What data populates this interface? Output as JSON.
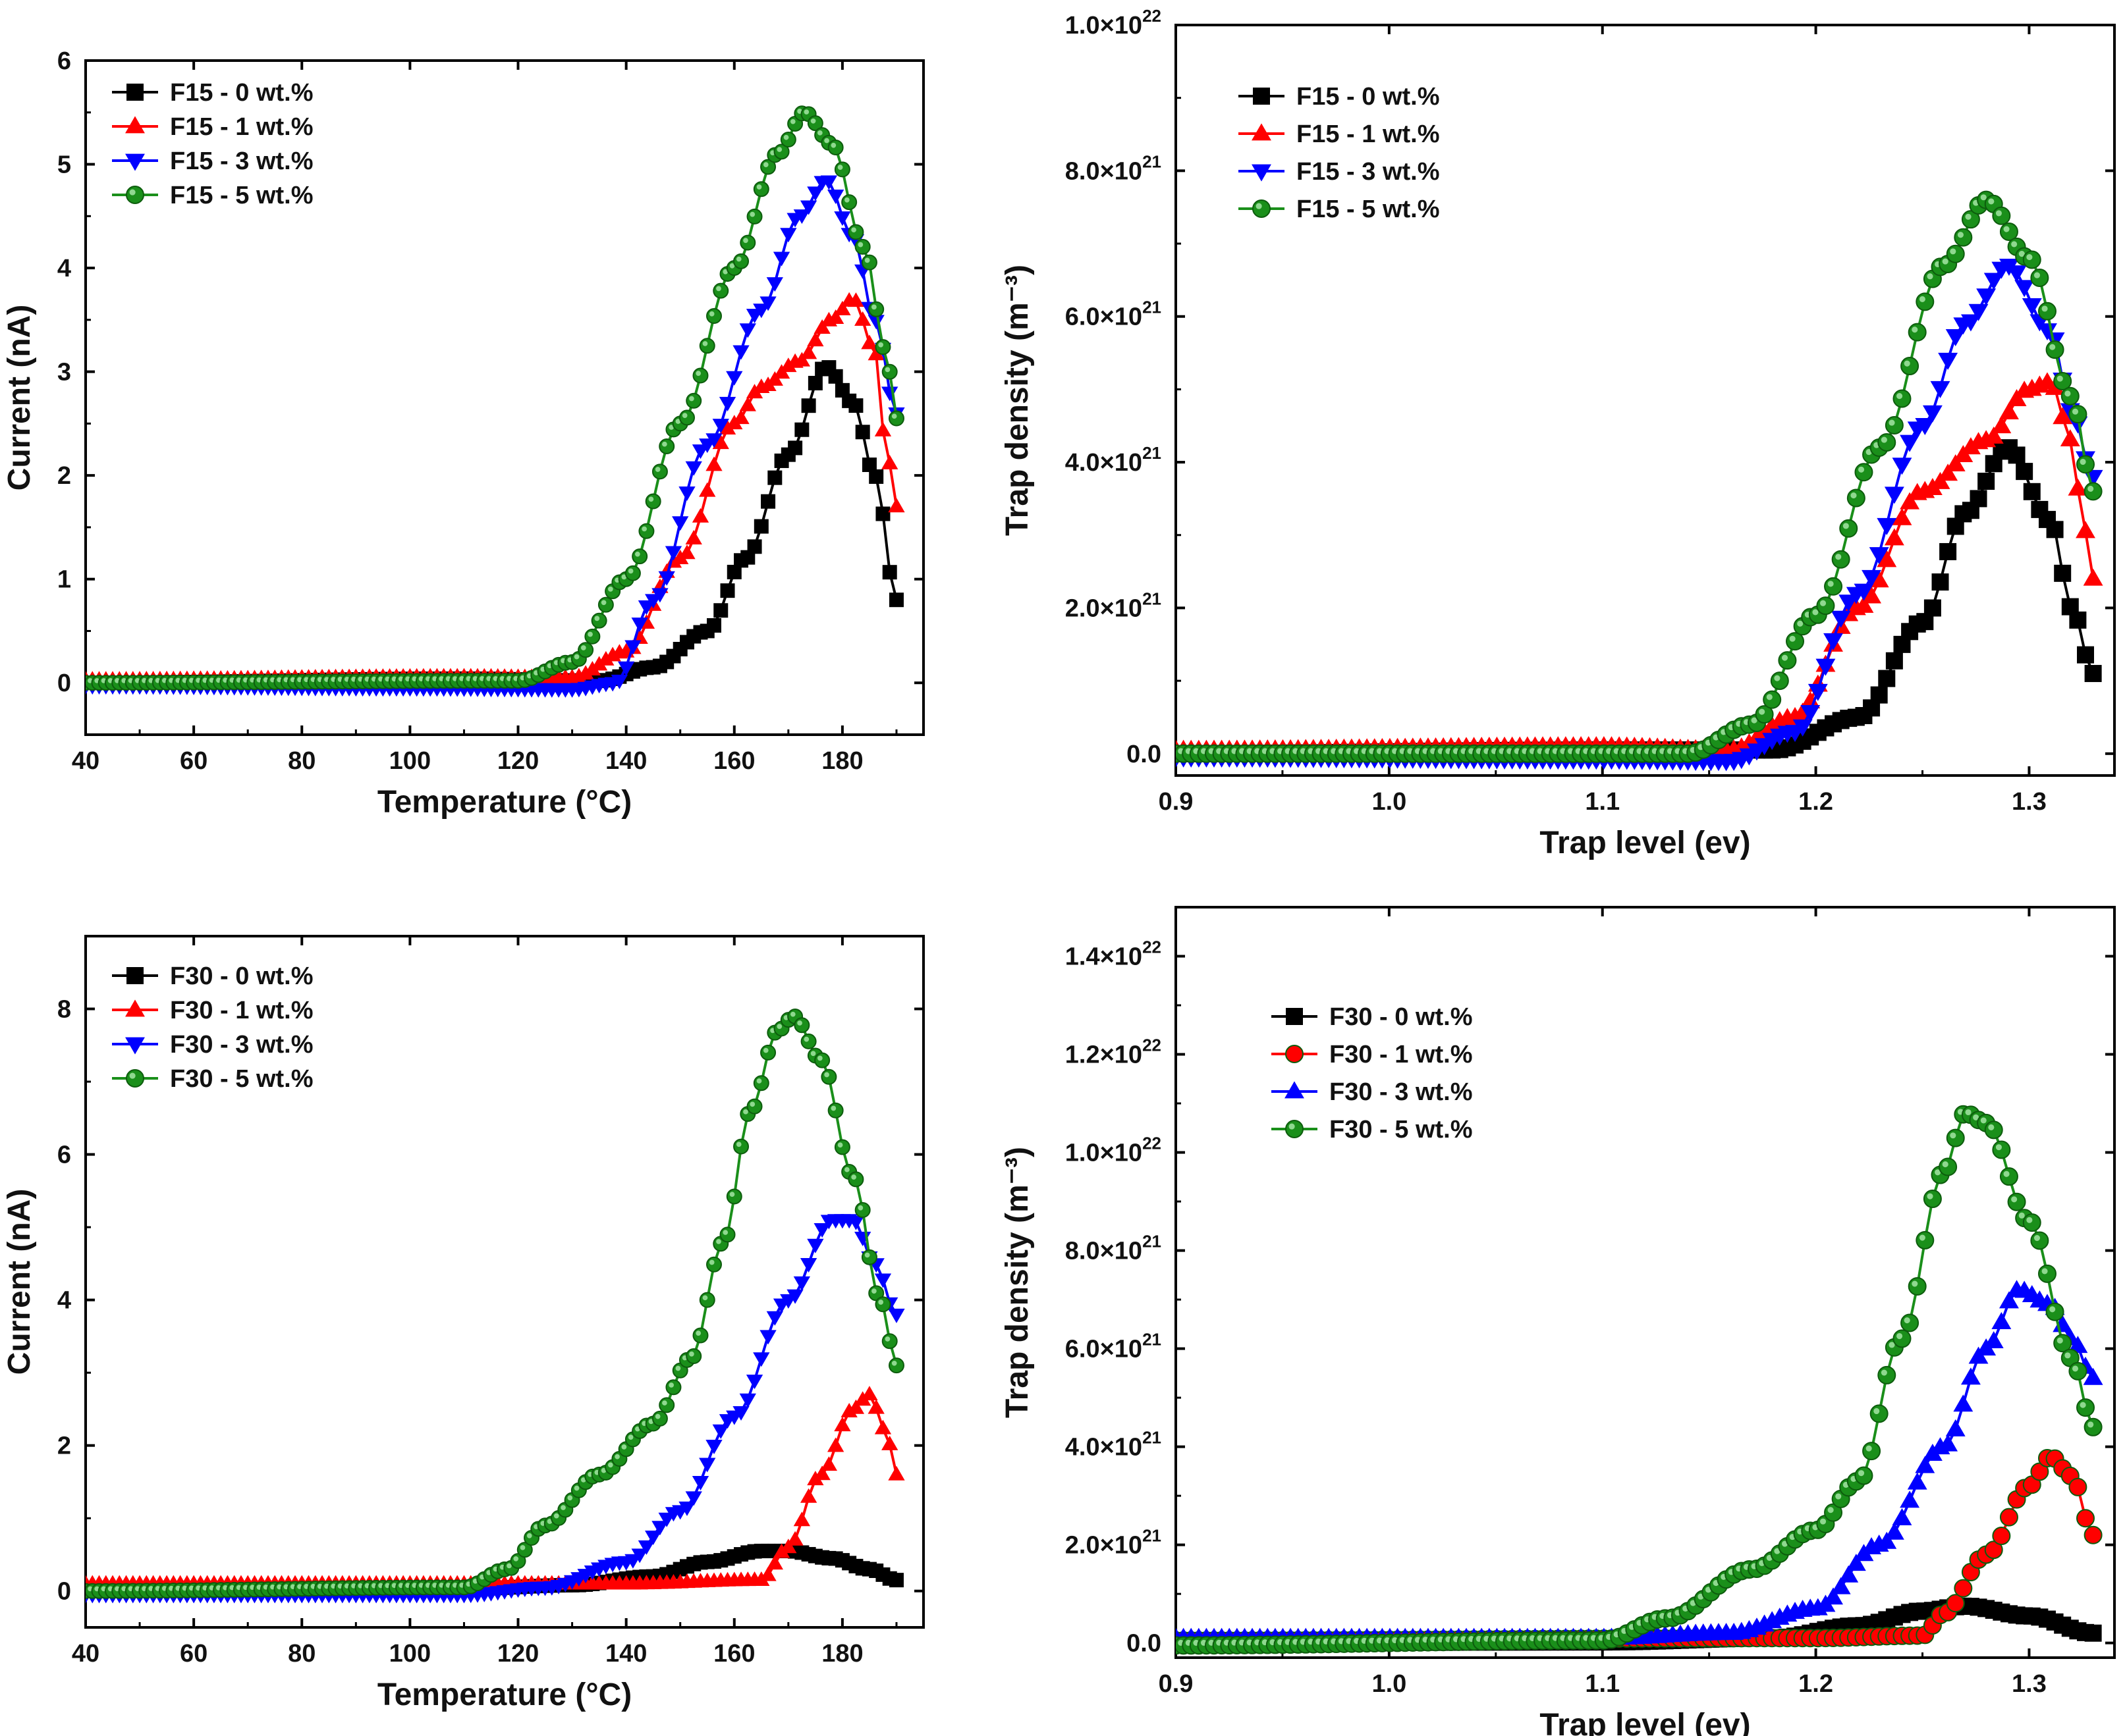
{
  "chart_data": [
    {
      "type": "line",
      "panel": "top-left",
      "xlabel": "Temperature (°C)",
      "ylabel": "Current (nA)",
      "xlim": [
        40,
        195
      ],
      "ylim": [
        -0.5,
        6
      ],
      "xticks": [
        40,
        60,
        80,
        100,
        120,
        140,
        160,
        180
      ],
      "yticks": [
        0,
        1,
        2,
        3,
        4,
        5,
        6
      ],
      "xtick_labels": [
        "40",
        "60",
        "80",
        "100",
        "120",
        "140",
        "160",
        "180"
      ],
      "ytick_labels": [
        "0",
        "1",
        "2",
        "3",
        "4",
        "5",
        "6"
      ],
      "legend_position": "top-left",
      "series": [
        {
          "name": "F15 - 0 wt.%",
          "color": "#000000",
          "marker": "square",
          "curve": {
            "base": 0.0,
            "bumpAmp": 0.04,
            "bumpCenter": 110,
            "shoulders": [
              [
                1.2,
                160,
                9
              ],
              [
                2.25,
                175,
                7
              ]
            ],
            "xEnd": 190,
            "peaks": [
              [
                177,
                3.05
              ]
            ],
            "tail": [
              [
                186,
                2.2
              ],
              [
                190,
                0.8
              ]
            ]
          }
        },
        {
          "name": "F15 - 1 wt.%",
          "color": "#ff0000",
          "marker": "triangle-up",
          "curve": {
            "base": 0.03,
            "points": [
              [
                40,
                0.03
              ],
              [
                110,
                0.06
              ],
              [
                130,
                0.05
              ],
              [
                140,
                0.3
              ],
              [
                150,
                1.2
              ],
              [
                160,
                2.5
              ],
              [
                165,
                2.85
              ],
              [
                172,
                3.1
              ],
              [
                178,
                3.5
              ],
              [
                182,
                3.7
              ],
              [
                186,
                3.2
              ],
              [
                188,
                2.3
              ],
              [
                190,
                1.7
              ]
            ]
          }
        },
        {
          "name": "F15 - 3 wt.%",
          "color": "#0000ff",
          "marker": "triangle-down",
          "curve": {
            "base": -0.03,
            "points": [
              [
                40,
                -0.03
              ],
              [
                100,
                -0.05
              ],
              [
                130,
                -0.06
              ],
              [
                138,
                0.0
              ],
              [
                145,
                0.8
              ],
              [
                155,
                2.3
              ],
              [
                165,
                3.6
              ],
              [
                172,
                4.5
              ],
              [
                177,
                4.85
              ],
              [
                182,
                4.3
              ],
              [
                186,
                3.5
              ],
              [
                190,
                2.6
              ]
            ]
          }
        },
        {
          "name": "F15 - 5 wt.%",
          "color": "#1a8f1a",
          "marker": "circle",
          "curve": {
            "base": 0.0,
            "points": [
              [
                40,
                0.0
              ],
              [
                120,
                0.02
              ],
              [
                130,
                0.2
              ],
              [
                140,
                1.0
              ],
              [
                150,
                2.5
              ],
              [
                160,
                4.0
              ],
              [
                168,
                5.1
              ],
              [
                173,
                5.5
              ],
              [
                178,
                5.2
              ],
              [
                184,
                4.2
              ],
              [
                188,
                3.2
              ],
              [
                190,
                2.55
              ]
            ]
          }
        }
      ]
    },
    {
      "type": "line",
      "panel": "top-right",
      "xlabel": "Trap level (ev)",
      "ylabel": "Trap density (m⁻³)",
      "xlim": [
        0.9,
        1.34
      ],
      "ylim": [
        -3e+20,
        1e+22
      ],
      "xticks": [
        0.9,
        1.0,
        1.1,
        1.2,
        1.3
      ],
      "yticks": [
        0,
        2e+21,
        4e+21,
        6e+21,
        8e+21,
        1e+22
      ],
      "xtick_labels": [
        "0.9",
        "1.0",
        "1.1",
        "1.2",
        "1.3"
      ],
      "ytick_labels": [
        "0.0",
        "2.0×10",
        "4.0×10",
        "6.0×10",
        "8.0×10",
        "1.0×10"
      ],
      "ytick_exponents": [
        "",
        "21",
        "21",
        "21",
        "21",
        "22"
      ],
      "legend_position": "top-left",
      "series": [
        {
          "name": "F15 - 0 wt.%",
          "color": "#000000",
          "marker": "square",
          "curve": {
            "points": [
              [
                0.9,
                0.0
              ],
              [
                1.1,
                5e+19
              ],
              [
                1.18,
                5e+19
              ],
              [
                1.22,
                5e+20
              ],
              [
                1.25,
                1.8e+21
              ],
              [
                1.27,
                3.3e+21
              ],
              [
                1.29,
                4.2e+21
              ],
              [
                1.31,
                3.2e+21
              ],
              [
                1.32,
                2e+21
              ],
              [
                1.33,
                1.1e+21
              ]
            ]
          }
        },
        {
          "name": "F15 - 1 wt.%",
          "color": "#ff0000",
          "marker": "triangle-up",
          "curve": {
            "points": [
              [
                0.9,
                5e+19
              ],
              [
                1.1,
                1e+20
              ],
              [
                1.16,
                5e+19
              ],
              [
                1.19,
                5e+20
              ],
              [
                1.22,
                2e+21
              ],
              [
                1.25,
                3.6e+21
              ],
              [
                1.28,
                4.3e+21
              ],
              [
                1.3,
                5e+21
              ],
              [
                1.31,
                5.1e+21
              ],
              [
                1.32,
                4.3e+21
              ],
              [
                1.325,
                3.2e+21
              ],
              [
                1.33,
                2.4e+21
              ]
            ]
          }
        },
        {
          "name": "F15 - 3 wt.%",
          "color": "#0000ff",
          "marker": "triangle-down",
          "curve": {
            "points": [
              [
                0.9,
                -5e+19
              ],
              [
                1.1,
                -8e+19
              ],
              [
                1.16,
                -1e+20
              ],
              [
                1.19,
                3e+20
              ],
              [
                1.22,
                2.2e+21
              ],
              [
                1.25,
                4.5e+21
              ],
              [
                1.27,
                5.9e+21
              ],
              [
                1.29,
                6.7e+21
              ],
              [
                1.31,
                5.8e+21
              ],
              [
                1.32,
                4.7e+21
              ],
              [
                1.33,
                3.8e+21
              ]
            ]
          }
        },
        {
          "name": "F15 - 5 wt.%",
          "color": "#1a8f1a",
          "marker": "circle",
          "curve": {
            "points": [
              [
                0.9,
                0.0
              ],
              [
                1.14,
                0.0
              ],
              [
                1.17,
                4e+20
              ],
              [
                1.2,
                1.9e+21
              ],
              [
                1.23,
                4.2e+21
              ],
              [
                1.26,
                6.7e+21
              ],
              [
                1.28,
                7.6e+21
              ],
              [
                1.3,
                6.8e+21
              ],
              [
                1.32,
                4.9e+21
              ],
              [
                1.33,
                3.6e+21
              ]
            ]
          }
        }
      ]
    },
    {
      "type": "line",
      "panel": "bottom-left",
      "xlabel": "Temperature (°C)",
      "ylabel": "Current (nA)",
      "xlim": [
        40,
        195
      ],
      "ylim": [
        -0.5,
        9
      ],
      "xticks": [
        40,
        60,
        80,
        100,
        120,
        140,
        160,
        180
      ],
      "yticks": [
        0,
        2,
        4,
        6,
        8
      ],
      "xtick_labels": [
        "40",
        "60",
        "80",
        "100",
        "120",
        "140",
        "160",
        "180"
      ],
      "ytick_labels": [
        "0",
        "2",
        "4",
        "6",
        "8"
      ],
      "legend_position": "top-left",
      "series": [
        {
          "name": "F30 - 0 wt.%",
          "color": "#000000",
          "marker": "square",
          "curve": {
            "points": [
              [
                40,
                0.0
              ],
              [
                110,
                0.03
              ],
              [
                130,
                0.08
              ],
              [
                145,
                0.2
              ],
              [
                155,
                0.4
              ],
              [
                165,
                0.55
              ],
              [
                170,
                0.55
              ],
              [
                178,
                0.45
              ],
              [
                185,
                0.3
              ],
              [
                190,
                0.15
              ]
            ]
          }
        },
        {
          "name": "F30 - 1 wt.%",
          "color": "#ff0000",
          "marker": "triangle-up",
          "curve": {
            "points": [
              [
                40,
                0.1
              ],
              [
                140,
                0.1
              ],
              [
                165,
                0.15
              ],
              [
                170,
                0.6
              ],
              [
                176,
                1.6
              ],
              [
                182,
                2.5
              ],
              [
                185,
                2.7
              ],
              [
                188,
                2.2
              ],
              [
                190,
                1.6
              ]
            ]
          }
        },
        {
          "name": "F30 - 3 wt.%",
          "color": "#0000ff",
          "marker": "triangle-down",
          "curve": {
            "points": [
              [
                40,
                -0.05
              ],
              [
                110,
                -0.05
              ],
              [
                125,
                0.05
              ],
              [
                140,
                0.4
              ],
              [
                150,
                1.1
              ],
              [
                160,
                2.4
              ],
              [
                170,
                4.0
              ],
              [
                178,
                5.1
              ],
              [
                182,
                5.1
              ],
              [
                186,
                4.5
              ],
              [
                190,
                3.8
              ]
            ]
          }
        },
        {
          "name": "F30 - 5 wt.%",
          "color": "#1a8f1a",
          "marker": "circle",
          "curve": {
            "points": [
              [
                40,
                0.0
              ],
              [
                110,
                0.05
              ],
              [
                118,
                0.3
              ],
              [
                125,
                0.9
              ],
              [
                135,
                1.6
              ],
              [
                145,
                2.3
              ],
              [
                152,
                3.2
              ],
              [
                158,
                4.8
              ],
              [
                163,
                6.6
              ],
              [
                168,
                7.7
              ],
              [
                171,
                7.9
              ],
              [
                176,
                7.3
              ],
              [
                182,
                5.7
              ],
              [
                187,
                4.0
              ],
              [
                190,
                3.1
              ]
            ]
          }
        }
      ]
    },
    {
      "type": "line",
      "panel": "bottom-right",
      "xlabel": "Trap level (ev)",
      "ylabel": "Trap density (m⁻³)",
      "xlim": [
        0.9,
        1.34
      ],
      "ylim": [
        -3e+20,
        1.5e+22
      ],
      "xticks": [
        0.9,
        1.0,
        1.1,
        1.2,
        1.3
      ],
      "yticks": [
        0,
        2e+21,
        4e+21,
        6e+21,
        8e+21,
        1e+22,
        1.2e+22,
        1.4e+22
      ],
      "xtick_labels": [
        "0.9",
        "1.0",
        "1.1",
        "1.2",
        "1.3"
      ],
      "ytick_labels": [
        "0.0",
        "2.0×10",
        "4.0×10",
        "6.0×10",
        "8.0×10",
        "1.0×10",
        "1.2×10",
        "1.4×10"
      ],
      "ytick_exponents": [
        "",
        "21",
        "21",
        "21",
        "21",
        "22",
        "22",
        "22"
      ],
      "legend_position": "top-left",
      "series": [
        {
          "name": "F30 - 0 wt.%",
          "color": "#000000",
          "marker": "square",
          "curve": {
            "points": [
              [
                0.9,
                0.0
              ],
              [
                1.1,
                2e+19
              ],
              [
                1.18,
                1e+20
              ],
              [
                1.22,
                3.5e+20
              ],
              [
                1.25,
                6.5e+20
              ],
              [
                1.27,
                7.5e+20
              ],
              [
                1.3,
                5.5e+20
              ],
              [
                1.33,
                2e+20
              ]
            ]
          }
        },
        {
          "name": "F30 - 1 wt.%",
          "color": "#ff0000",
          "marker": "circle",
          "curve": {
            "points": [
              [
                0.9,
                5e+19
              ],
              [
                1.2,
                1e+20
              ],
              [
                1.25,
                1.5e+20
              ],
              [
                1.26,
                6e+20
              ],
              [
                1.28,
                1.8e+21
              ],
              [
                1.3,
                3.2e+21
              ],
              [
                1.31,
                3.8e+21
              ],
              [
                1.32,
                3.4e+21
              ],
              [
                1.33,
                2.2e+21
              ]
            ]
          }
        },
        {
          "name": "F30 - 3 wt.%",
          "color": "#0000ff",
          "marker": "triangle-up",
          "curve": {
            "points": [
              [
                0.9,
                1e+20
              ],
              [
                1.1,
                1e+20
              ],
              [
                1.16,
                2e+20
              ],
              [
                1.2,
                7e+20
              ],
              [
                1.23,
                2e+21
              ],
              [
                1.26,
                4e+21
              ],
              [
                1.28,
                6e+21
              ],
              [
                1.295,
                7.2e+21
              ],
              [
                1.31,
                6.9e+21
              ],
              [
                1.32,
                6.2e+21
              ],
              [
                1.33,
                5.4e+21
              ]
            ]
          }
        },
        {
          "name": "F30 - 5 wt.%",
          "color": "#1a8f1a",
          "marker": "circle",
          "curve": {
            "points": [
              [
                0.9,
                -5e+19
              ],
              [
                1.1,
                5e+19
              ],
              [
                1.13,
                5e+20
              ],
              [
                1.17,
                1.5e+21
              ],
              [
                1.2,
                2.3e+21
              ],
              [
                1.22,
                3.3e+21
              ],
              [
                1.24,
                6.2e+21
              ],
              [
                1.26,
                9.6e+21
              ],
              [
                1.27,
                1.08e+22
              ],
              [
                1.28,
                1.06e+22
              ],
              [
                1.3,
                8.6e+21
              ],
              [
                1.32,
                5.8e+21
              ],
              [
                1.33,
                4.4e+21
              ]
            ]
          }
        }
      ]
    }
  ]
}
